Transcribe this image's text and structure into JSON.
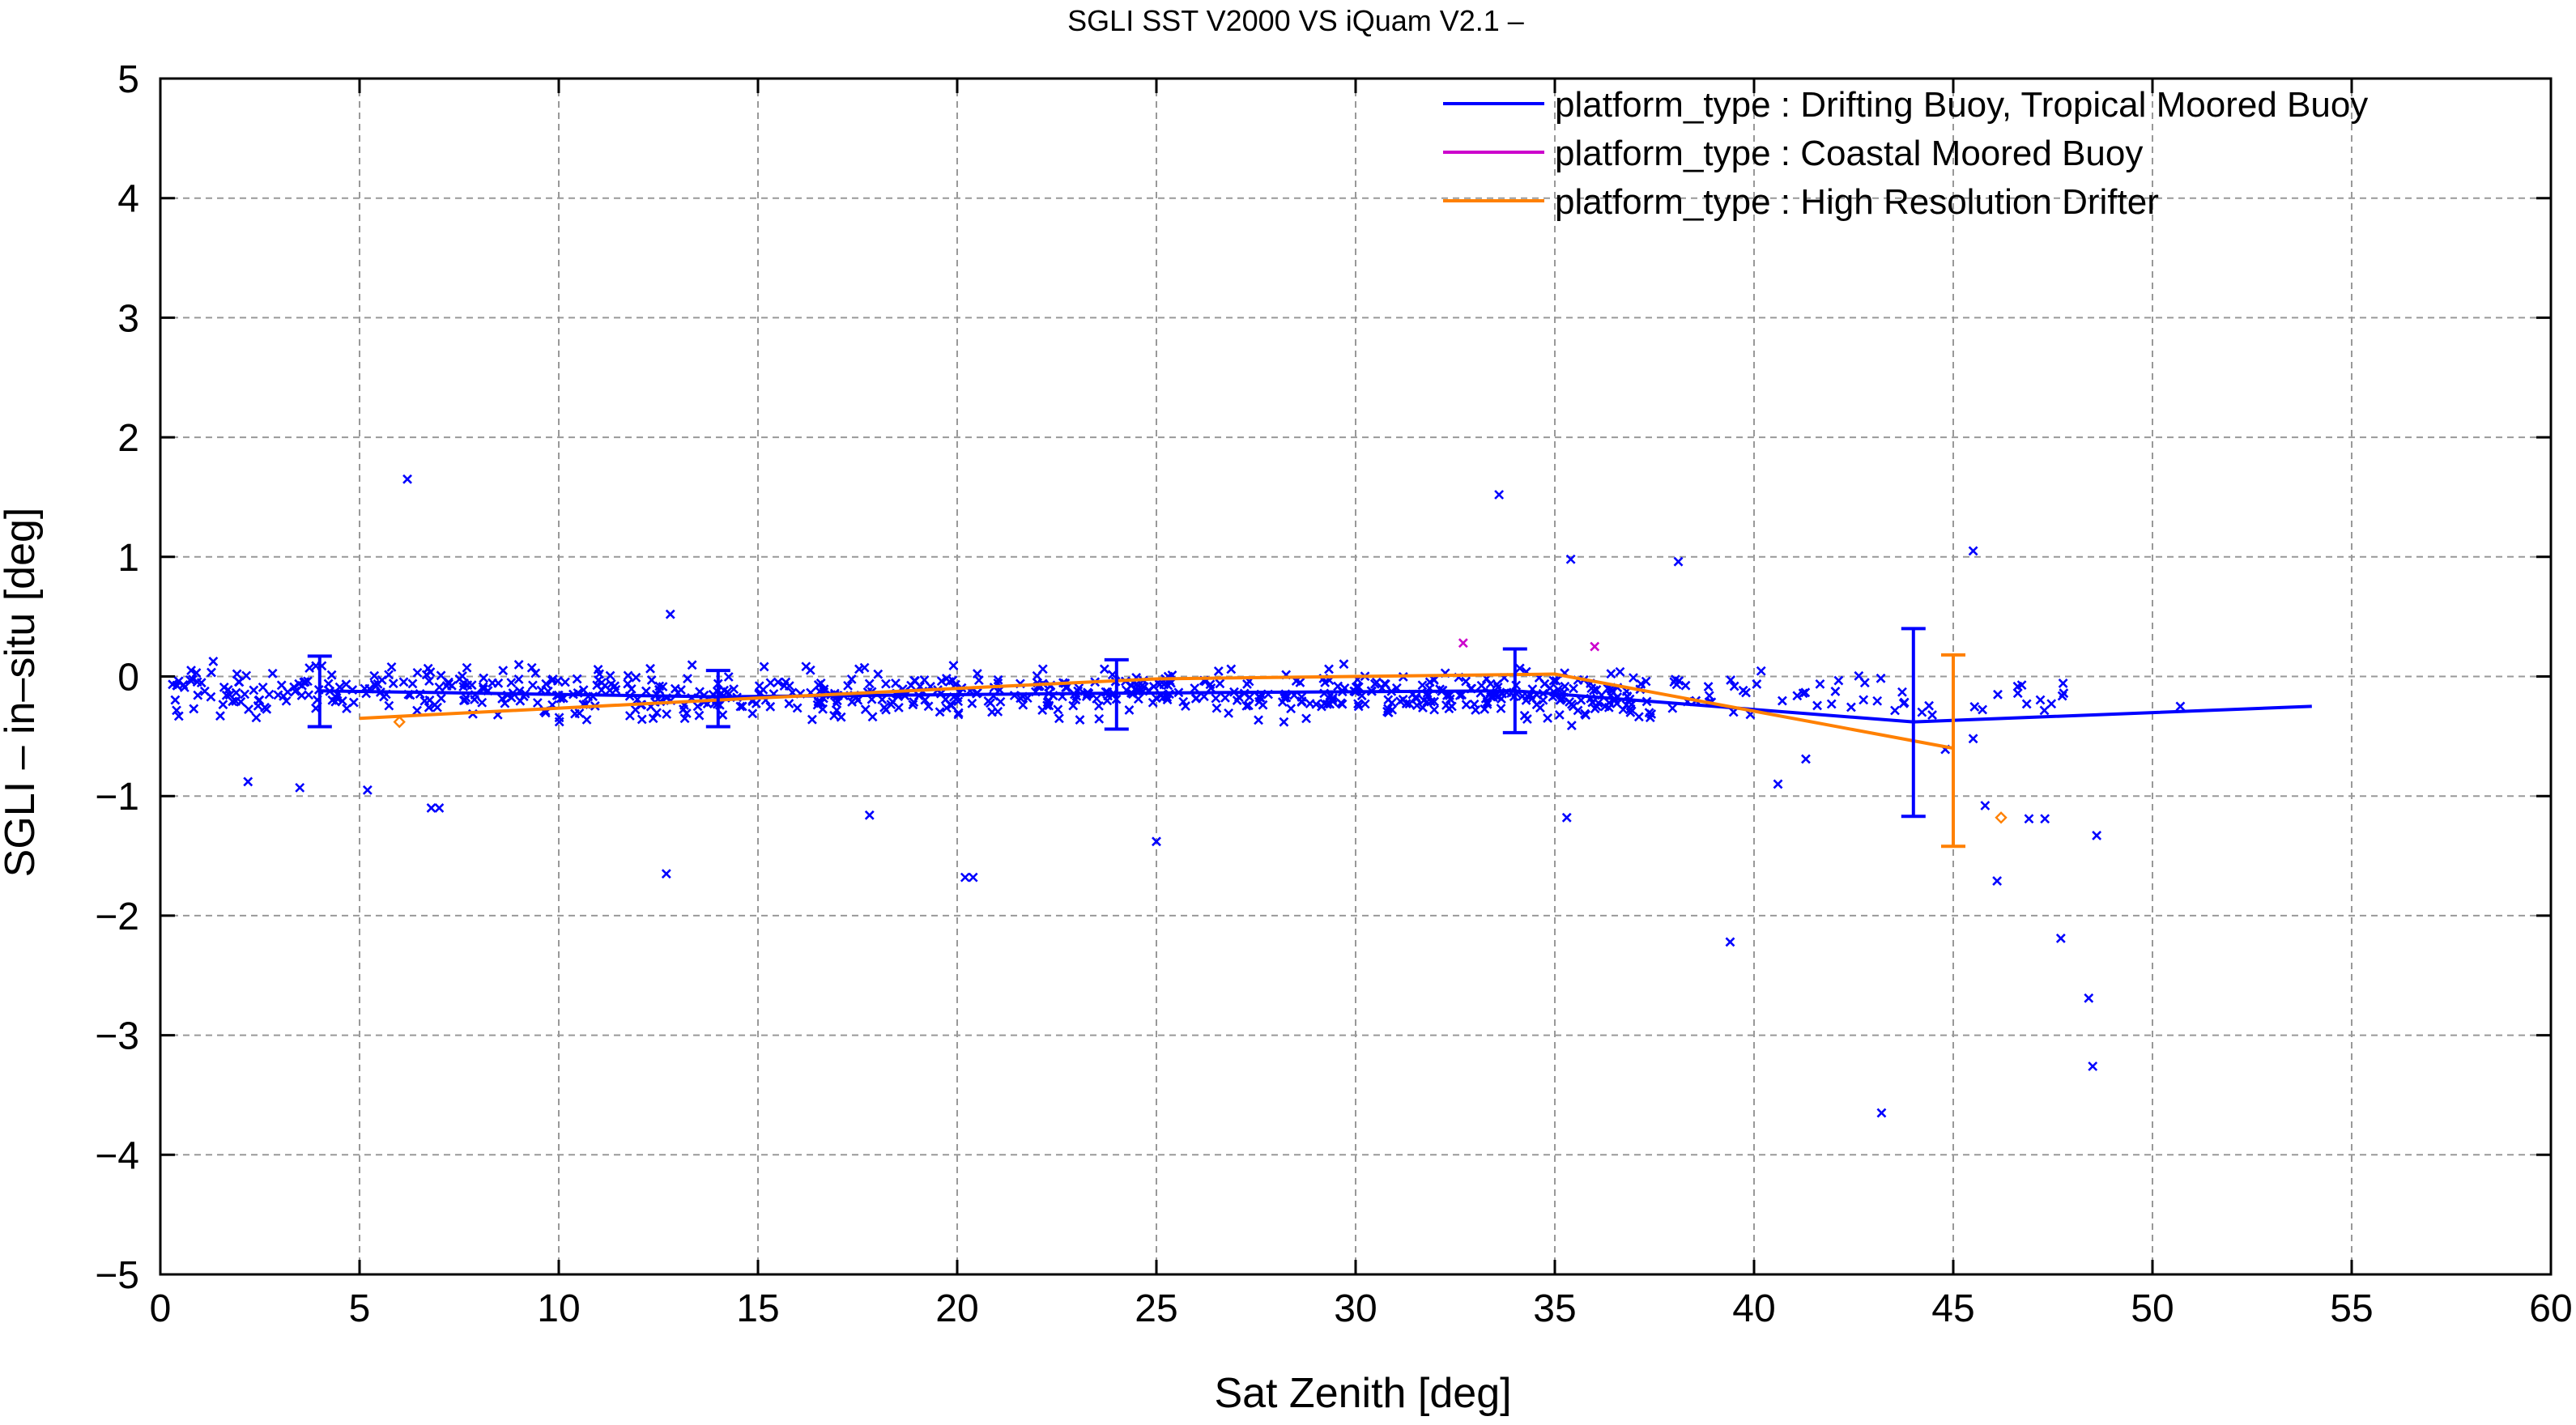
{
  "chart_data": {
    "type": "scatter",
    "title": "SGLI SST V2000 VS iQuam V2.1  –",
    "xlabel": "Sat Zenith [deg]",
    "ylabel": "SGLI – in–situ [deg]",
    "xlim": [
      0,
      60
    ],
    "ylim": [
      -5,
      5
    ],
    "xticks": [
      0,
      5,
      10,
      15,
      20,
      25,
      30,
      35,
      40,
      45,
      50,
      55,
      60
    ],
    "yticks": [
      -5,
      -4,
      -3,
      -2,
      -1,
      0,
      1,
      2,
      3,
      4,
      5
    ],
    "grid": true,
    "legend_position": "top-right",
    "series": [
      {
        "name": "platform_type : Drifting Buoy, Tropical Moored Buoy",
        "color": "#0000ff",
        "marker": "x",
        "mean_line": {
          "x": [
            4,
            14,
            24,
            34,
            44,
            54
          ],
          "y": [
            -0.12,
            -0.17,
            -0.14,
            -0.12,
            -0.38,
            -0.25
          ]
        },
        "error_bars": [
          {
            "x": 4,
            "low": -0.42,
            "high": 0.17
          },
          {
            "x": 14,
            "low": -0.42,
            "high": 0.05
          },
          {
            "x": 24,
            "low": -0.44,
            "high": 0.14
          },
          {
            "x": 34,
            "low": -0.47,
            "high": 0.23
          },
          {
            "x": 44,
            "low": -1.17,
            "high": 0.4
          }
        ],
        "outliers": [
          {
            "x": 6.2,
            "y": 1.65
          },
          {
            "x": 33.6,
            "y": 1.52
          },
          {
            "x": 45.5,
            "y": 1.05
          },
          {
            "x": 35.4,
            "y": 0.98
          },
          {
            "x": 38.1,
            "y": 0.96
          },
          {
            "x": 12.8,
            "y": 0.52
          },
          {
            "x": 12.7,
            "y": -1.65
          },
          {
            "x": 17.8,
            "y": -1.16
          },
          {
            "x": 20.2,
            "y": -1.68
          },
          {
            "x": 20.4,
            "y": -1.68
          },
          {
            "x": 25.0,
            "y": -1.38
          },
          {
            "x": 35.3,
            "y": -1.18
          },
          {
            "x": 39.4,
            "y": -2.22
          },
          {
            "x": 40.6,
            "y": -0.9
          },
          {
            "x": 41.3,
            "y": -0.69
          },
          {
            "x": 43.2,
            "y": -3.65
          },
          {
            "x": 45.8,
            "y": -1.08
          },
          {
            "x": 46.1,
            "y": -1.71
          },
          {
            "x": 46.9,
            "y": -1.19
          },
          {
            "x": 47.3,
            "y": -1.19
          },
          {
            "x": 47.7,
            "y": -2.19
          },
          {
            "x": 48.4,
            "y": -2.69
          },
          {
            "x": 48.6,
            "y": -1.33
          },
          {
            "x": 48.5,
            "y": -3.26
          },
          {
            "x": 6.8,
            "y": -1.1
          },
          {
            "x": 7.0,
            "y": -1.1
          },
          {
            "x": 2.2,
            "y": -0.88
          },
          {
            "x": 3.5,
            "y": -0.93
          },
          {
            "x": 5.2,
            "y": -0.95
          },
          {
            "x": 45.5,
            "y": -0.52
          },
          {
            "x": 44.8,
            "y": -0.61
          },
          {
            "x": 50.7,
            "y": -0.25
          }
        ]
      },
      {
        "name": "platform_type : Coastal Moored Buoy",
        "color": "#cc00cc",
        "marker": "x",
        "outliers": [
          {
            "x": 32.7,
            "y": 0.28
          },
          {
            "x": 36.0,
            "y": 0.25
          }
        ]
      },
      {
        "name": "platform_type : High Resolution Drifter",
        "color": "#ff8000",
        "marker": "diamond",
        "mean_line": {
          "x": [
            5,
            15,
            25,
            35,
            45
          ],
          "y": [
            -0.35,
            -0.18,
            -0.02,
            0.02,
            -0.6
          ]
        },
        "error_bars": [
          {
            "x": 45,
            "low": -1.42,
            "high": 0.18
          }
        ],
        "outliers": [
          {
            "x": 46.2,
            "y": -1.18
          },
          {
            "x": 6.0,
            "y": -0.38
          }
        ]
      }
    ]
  }
}
